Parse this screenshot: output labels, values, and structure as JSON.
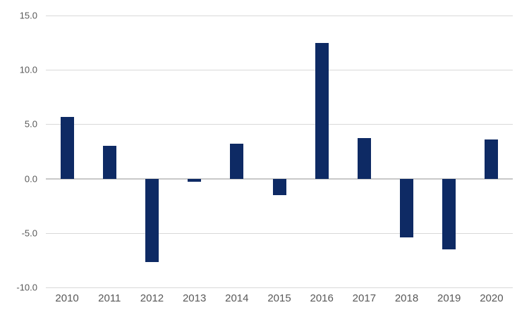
{
  "chart_data": {
    "type": "bar",
    "title": "",
    "xlabel": "",
    "ylabel": "",
    "categories": [
      "2010",
      "2011",
      "2012",
      "2013",
      "2014",
      "2015",
      "2016",
      "2017",
      "2018",
      "2019",
      "2020"
    ],
    "values": [
      5.7,
      3.0,
      -7.7,
      -0.3,
      3.2,
      -1.5,
      12.5,
      3.7,
      -5.4,
      -6.5,
      3.6
    ],
    "ylim": [
      -10.0,
      15.0
    ],
    "ytick_step": 5.0,
    "yticks": [
      15.0,
      10.0,
      5.0,
      0.0,
      -5.0,
      -10.0
    ],
    "ytick_labels": [
      "15.0",
      "10.0",
      "5.0",
      "0.0",
      "-5.0",
      "-10.0"
    ],
    "grid": true,
    "legend": false,
    "colors": {
      "bar": "#0e2a64",
      "gridline": "#d9d9d9",
      "zero_line": "#c9c9c9",
      "tick_label": "#595959",
      "background": "#ffffff"
    }
  }
}
